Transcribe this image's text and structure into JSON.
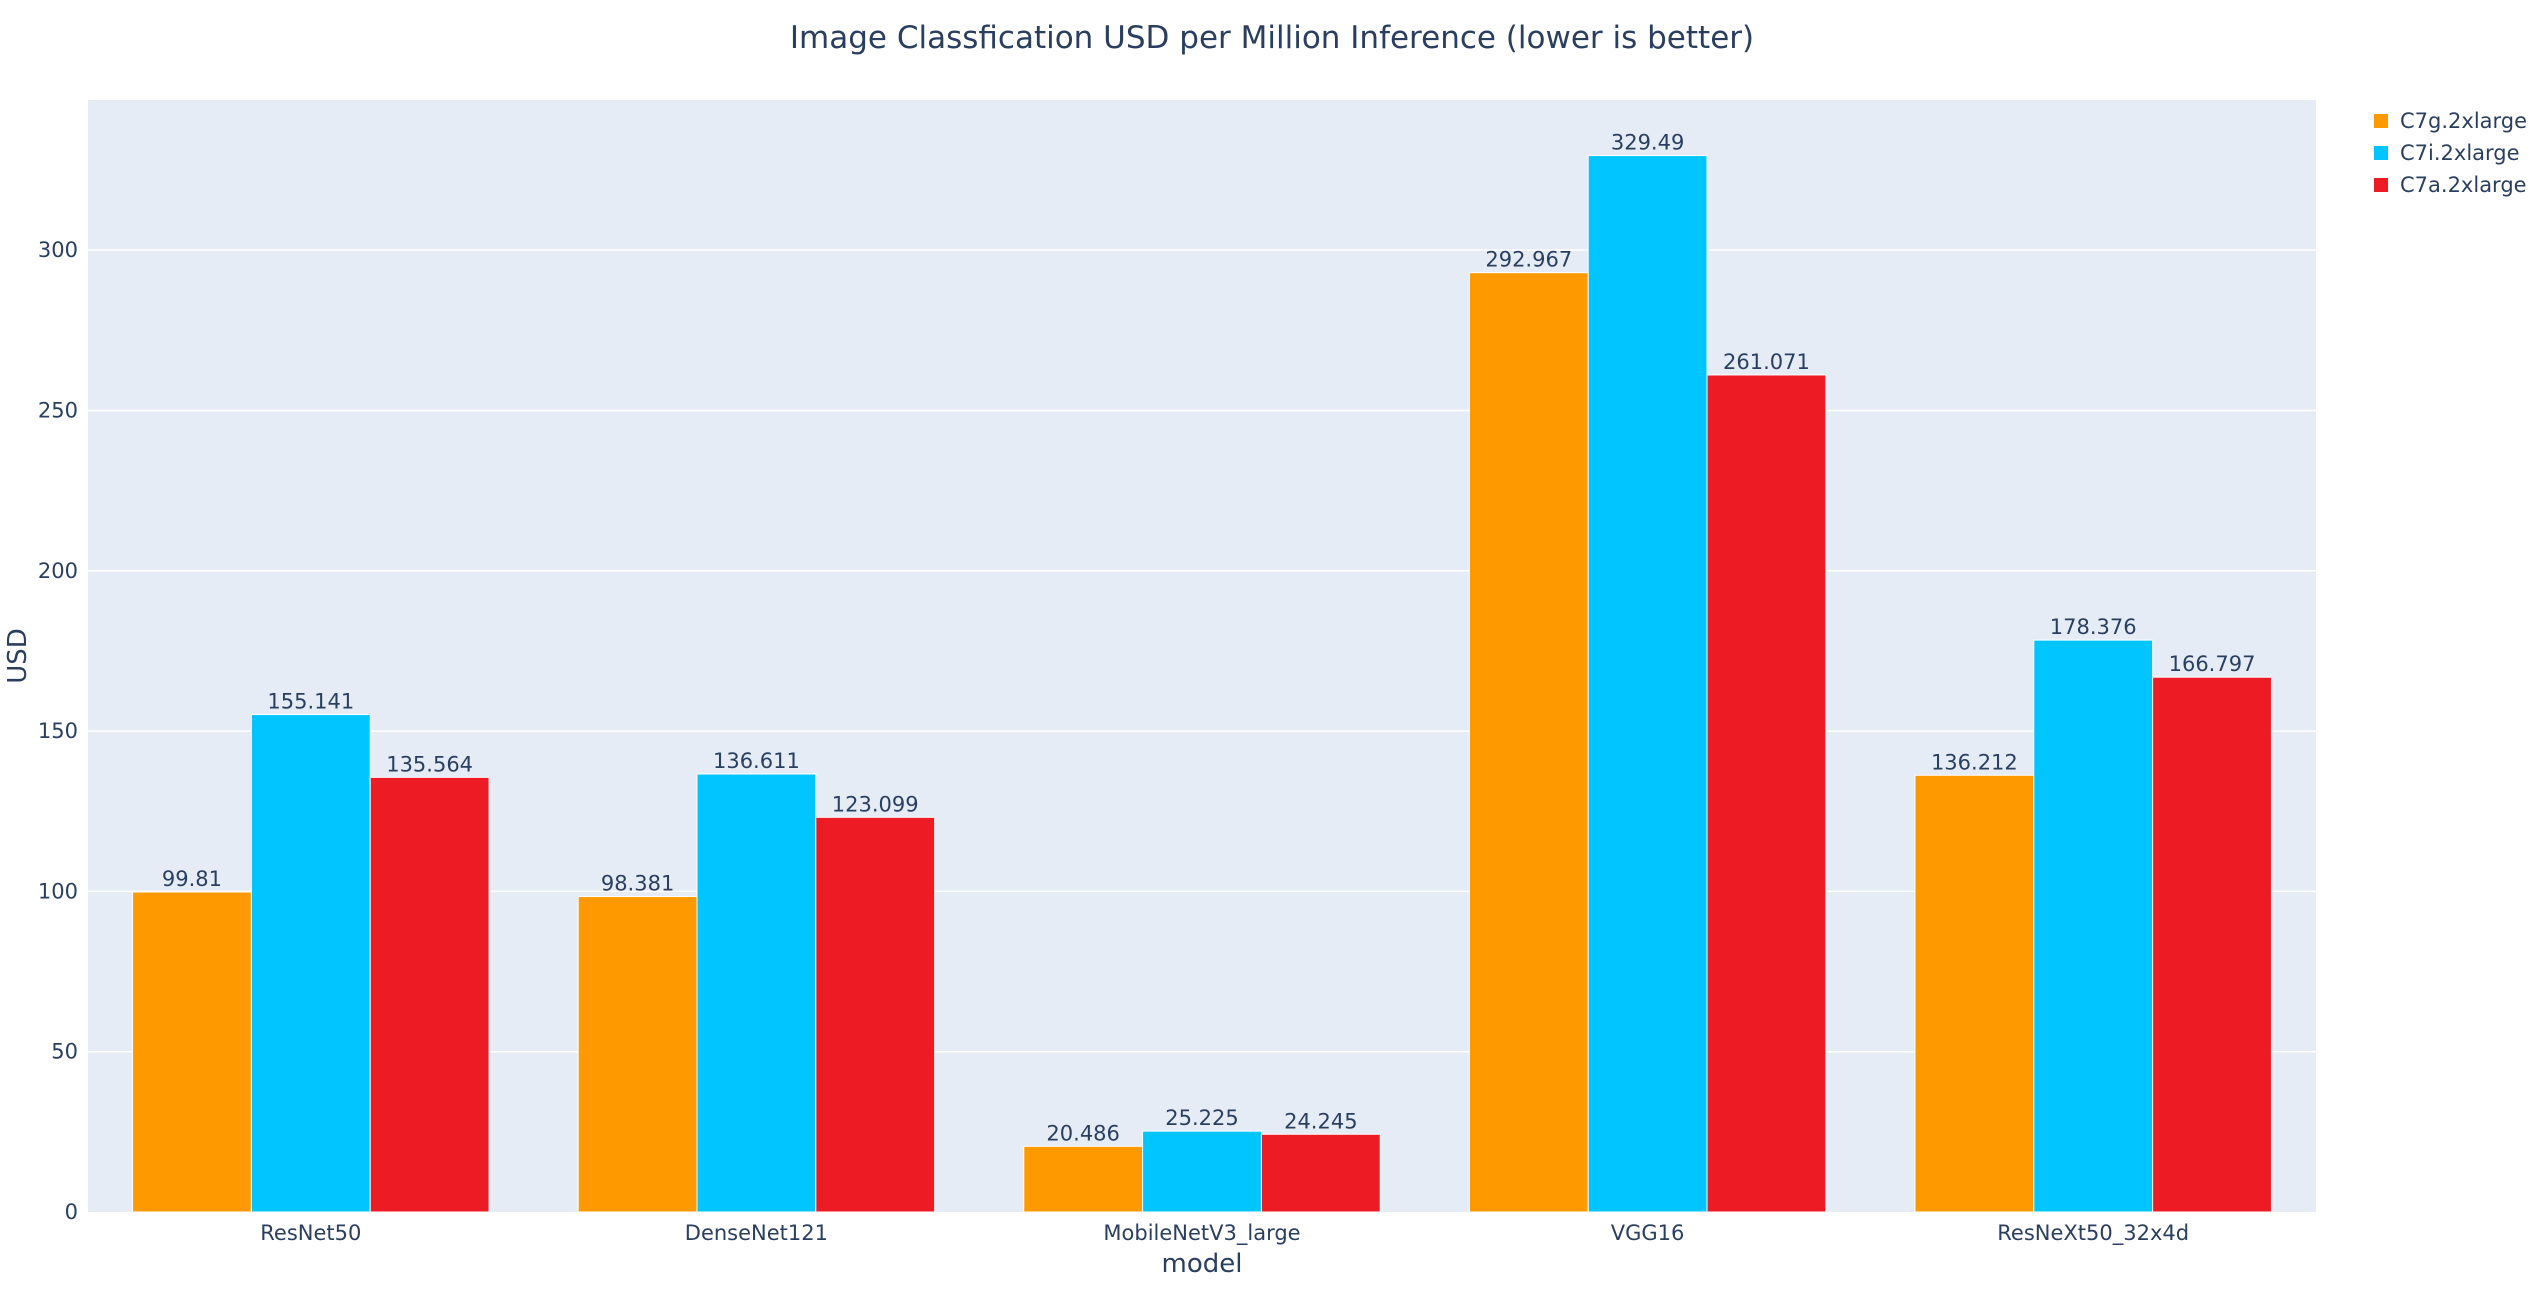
{
  "chart_data": {
    "type": "bar",
    "title": "Image Classfication USD per Million Inference (lower is better)",
    "xlabel": "model",
    "ylabel": "USD",
    "categories": [
      "ResNet50",
      "DenseNet121",
      "MobileNetV3_large",
      "VGG16",
      "ResNeXt50_32x4d"
    ],
    "series": [
      {
        "name": "C7g.2xlarge",
        "color": "#ff9900",
        "values": [
          99.81,
          98.381,
          20.486,
          292.967,
          136.212
        ],
        "labels": [
          "99.81",
          "98.381",
          "20.486",
          "292.967",
          "136.212"
        ]
      },
      {
        "name": "C7i.2xlarge",
        "color": "#00c5ff",
        "values": [
          155.141,
          136.611,
          25.225,
          329.49,
          178.376
        ],
        "labels": [
          "155.141",
          "136.611",
          "25.225",
          "329.49",
          "178.376"
        ]
      },
      {
        "name": "C7a.2xlarge",
        "color": "#ed1c24",
        "values": [
          135.564,
          123.099,
          24.245,
          261.071,
          166.797
        ],
        "labels": [
          "135.564",
          "123.099",
          "24.245",
          "261.071",
          "166.797"
        ]
      }
    ],
    "ylim": [
      0,
      346.83
    ],
    "yticks": [
      0,
      50,
      100,
      150,
      200,
      250,
      300
    ],
    "ytick_labels": [
      "0",
      "50",
      "100",
      "150",
      "200",
      "250",
      "300"
    ],
    "grid": true,
    "legend_position": "top-right",
    "plot_bgcolor": "#e5ecf6",
    "text_color": "#2a3f5f"
  }
}
